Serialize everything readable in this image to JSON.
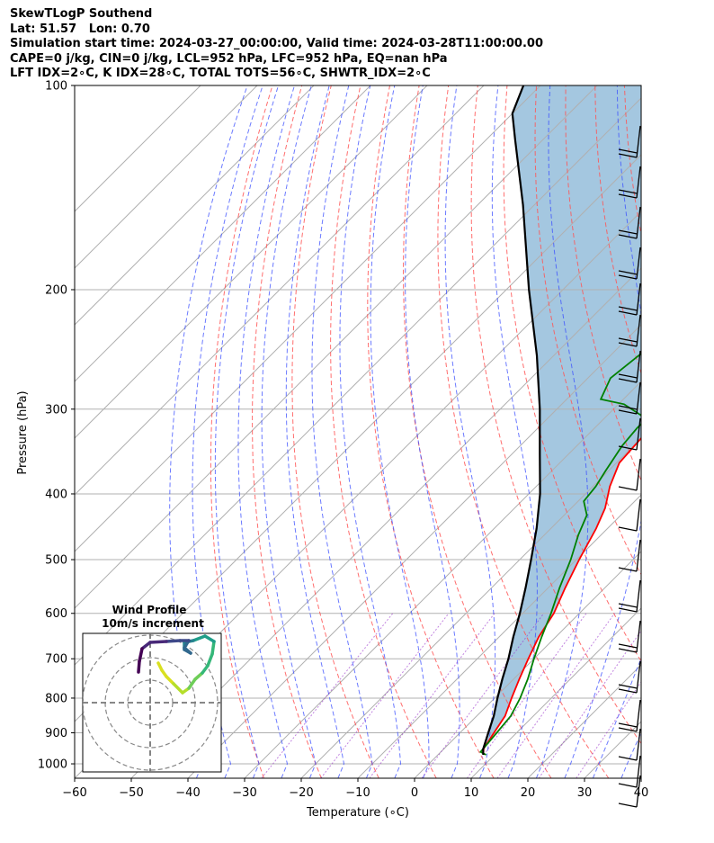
{
  "header": {
    "line1": "SkewTLogP Southend",
    "line2": "Lat: 51.57   Lon: 0.70",
    "line3": "Simulation start time: 2024-03-27_00:00:00, Valid time: 2024-03-28T11:00:00.00",
    "line4": "CAPE=0 j/kg, CIN=0 j/kg, LCL=952 hPa, LFC=952 hPa, EQ=nan hPa",
    "line5": "LFT IDX=2∘C, K IDX=28∘C, TOTAL TOTS=56∘C, SHWTR_IDX=2∘C"
  },
  "chart_data": {
    "type": "line",
    "subtype": "skew-t log-p",
    "xlabel": "Temperature (∘C)",
    "ylabel": "Pressure (hPa)",
    "xlim": [
      -60,
      40
    ],
    "ylim": [
      1050,
      100
    ],
    "y_scale": "log",
    "grid": true,
    "x_ticks": [
      -60,
      -50,
      -40,
      -30,
      -20,
      -10,
      0,
      10,
      20,
      30,
      40
    ],
    "x_tick_labels": [
      "−60",
      "−50",
      "−40",
      "−30",
      "−20",
      "−10",
      "0",
      "10",
      "20",
      "30",
      "40"
    ],
    "y_ticks": [
      1000,
      900,
      800,
      700,
      600,
      500,
      400,
      300,
      200,
      100
    ],
    "y_tick_labels": [
      "1000",
      "900",
      "800",
      "700",
      "600",
      "500",
      "400",
      "300",
      "200",
      "100"
    ],
    "series": [
      {
        "role": "temperature",
        "color": "#ff0000",
        "points": [
          [
            8,
            970
          ],
          [
            7,
            950
          ],
          [
            6,
            900
          ],
          [
            5,
            850
          ],
          [
            3,
            800
          ],
          [
            1,
            750
          ],
          [
            -1,
            700
          ],
          [
            -3,
            650
          ],
          [
            -4.5,
            600
          ],
          [
            -7,
            550
          ],
          [
            -9.5,
            500
          ],
          [
            -12,
            450
          ],
          [
            -14,
            420
          ],
          [
            -17,
            390
          ],
          [
            -19.5,
            360
          ],
          [
            -20,
            330
          ],
          [
            -19,
            310
          ],
          [
            -16.5,
            290
          ],
          [
            -12,
            265
          ],
          [
            -9.5,
            240
          ],
          [
            -6,
            225
          ],
          [
            -3.5,
            205
          ],
          [
            -4,
            185
          ],
          [
            -3,
            165
          ],
          [
            -0.5,
            150
          ],
          [
            1,
            135
          ],
          [
            1.5,
            120
          ],
          [
            1.5,
            105
          ],
          [
            1,
            100
          ]
        ]
      },
      {
        "role": "dewpoint",
        "color": "#008000",
        "points": [
          [
            8.5,
            970
          ],
          [
            7,
            960
          ],
          [
            6.5,
            900
          ],
          [
            6,
            850
          ],
          [
            4.5,
            800
          ],
          [
            2.5,
            750
          ],
          [
            0,
            700
          ],
          [
            -2.5,
            650
          ],
          [
            -5,
            600
          ],
          [
            -8,
            550
          ],
          [
            -11,
            500
          ],
          [
            -14,
            460
          ],
          [
            -16,
            430
          ],
          [
            -19,
            410
          ],
          [
            -19.5,
            390
          ],
          [
            -20.5,
            370
          ],
          [
            -22,
            340
          ],
          [
            -22.5,
            320
          ],
          [
            -22.5,
            310
          ],
          [
            -29,
            295
          ],
          [
            -34,
            290
          ],
          [
            -36,
            270
          ],
          [
            -35,
            250
          ],
          [
            -33.5,
            230
          ],
          [
            -33,
            220
          ],
          [
            -32.5,
            200
          ],
          [
            -30.5,
            185
          ],
          [
            -28,
            170
          ],
          [
            -24.5,
            150
          ],
          [
            -20.5,
            135
          ],
          [
            -17,
            120
          ],
          [
            -13.5,
            105
          ],
          [
            -13,
            100
          ]
        ]
      },
      {
        "role": "parcel",
        "color": "#000000",
        "points": [
          [
            8,
            970
          ],
          [
            7,
            952
          ],
          [
            5,
            900
          ],
          [
            3,
            850
          ],
          [
            0.5,
            800
          ],
          [
            -2,
            750
          ],
          [
            -4.5,
            700
          ],
          [
            -7.5,
            650
          ],
          [
            -10.5,
            600
          ],
          [
            -14,
            550
          ],
          [
            -18,
            500
          ],
          [
            -22.5,
            450
          ],
          [
            -28,
            400
          ],
          [
            -35,
            350
          ],
          [
            -43,
            300
          ],
          [
            -53,
            250
          ],
          [
            -66,
            200
          ],
          [
            -82,
            150
          ],
          [
            -95,
            120
          ],
          [
            -100,
            110
          ],
          [
            -103,
            100
          ]
        ]
      }
    ],
    "shading": "area between parcel and temperature",
    "shading_color": "#a4c7e0",
    "wind_barbs": "right side, from ~1000 hPa to 100 hPa",
    "inset": {
      "title": "Wind Profile",
      "subtitle": "10m/s increment",
      "type": "hodograph"
    }
  }
}
